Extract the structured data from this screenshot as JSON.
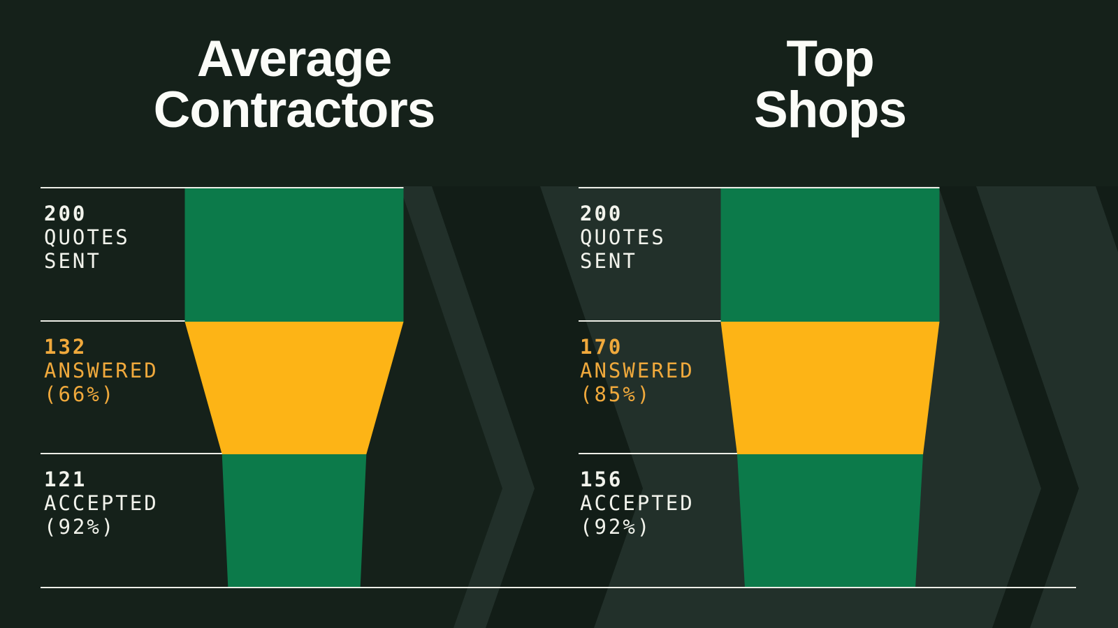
{
  "titles": {
    "left": {
      "line1": "Average",
      "line2": "Contractors"
    },
    "right": {
      "line1": "Top",
      "line2": "Shops"
    }
  },
  "chart_data": {
    "type": "funnel",
    "description": "Side-by-side quote conversion funnels comparing average contractors to top shops",
    "max_value": 200,
    "stage_names": [
      "QUOTES SENT",
      "ANSWERED",
      "ACCEPTED"
    ],
    "columns": [
      {
        "title": "Average Contractors",
        "stages": [
          {
            "value": 200,
            "line1": "200",
            "line2": "QUOTES",
            "line3": "SENT",
            "percent": null,
            "segment_color": "#0C7A4A",
            "text_color": "#F2F3EC"
          },
          {
            "value": 132,
            "line1": "132",
            "line2": "ANSWERED",
            "line3": "(66%)",
            "percent": "66%",
            "segment_color": "#FDB416",
            "text_color": "#F0A93C"
          },
          {
            "value": 121,
            "line1": "121",
            "line2": "ACCEPTED",
            "line3": "(92%)",
            "percent": "92%",
            "segment_color": "#0C7A4A",
            "text_color": "#F2F3EC"
          }
        ]
      },
      {
        "title": "Top Shops",
        "stages": [
          {
            "value": 200,
            "line1": "200",
            "line2": "QUOTES",
            "line3": "SENT",
            "percent": null,
            "segment_color": "#0C7A4A",
            "text_color": "#F2F3EC"
          },
          {
            "value": 170,
            "line1": "170",
            "line2": "ANSWERED",
            "line3": "(85%)",
            "percent": "85%",
            "segment_color": "#FDB416",
            "text_color": "#F0A93C"
          },
          {
            "value": 156,
            "line1": "156",
            "line2": "ACCEPTED",
            "line3": "(92%)",
            "percent": "92%",
            "segment_color": "#0C7A4A",
            "text_color": "#F2F3EC"
          }
        ]
      }
    ]
  },
  "colors": {
    "background": "#15211A",
    "chevron_light": "#22302A",
    "chevron_dark": "#121D17",
    "funnel_green": "#0C7A4A",
    "funnel_yellow": "#FDB416",
    "rule_line": "#EDEEE7",
    "text_white": "#F2F3EC",
    "text_yellow": "#F0A93C",
    "title_white": "#FBFCF8"
  }
}
